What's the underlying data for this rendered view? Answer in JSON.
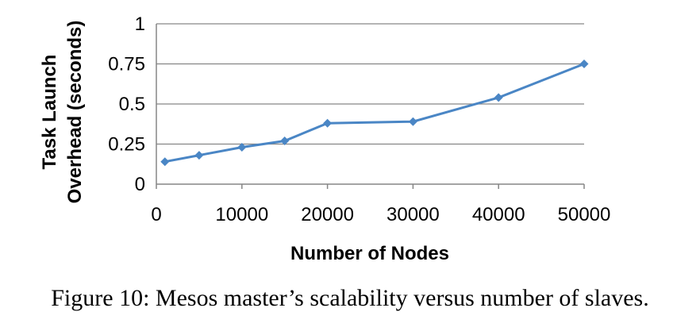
{
  "chart_data": {
    "type": "line",
    "xlabel": "Number of Nodes",
    "ylabel_lines": [
      "Task Launch",
      "Overhead (seconds)"
    ],
    "x_ticks": [
      "0",
      "10000",
      "20000",
      "30000",
      "40000",
      "50000"
    ],
    "y_ticks": [
      "0",
      "0.25",
      "0.5",
      "0.75",
      "1"
    ],
    "x": [
      1000,
      5000,
      10000,
      15000,
      20000,
      30000,
      40000,
      50000
    ],
    "y": [
      0.14,
      0.18,
      0.23,
      0.27,
      0.38,
      0.39,
      0.54,
      0.75
    ],
    "ylim": [
      0,
      1
    ],
    "grid": "horizontal",
    "series_color": "#4a86c5"
  },
  "caption": "Figure 10: Mesos master’s scalability versus number of slaves."
}
